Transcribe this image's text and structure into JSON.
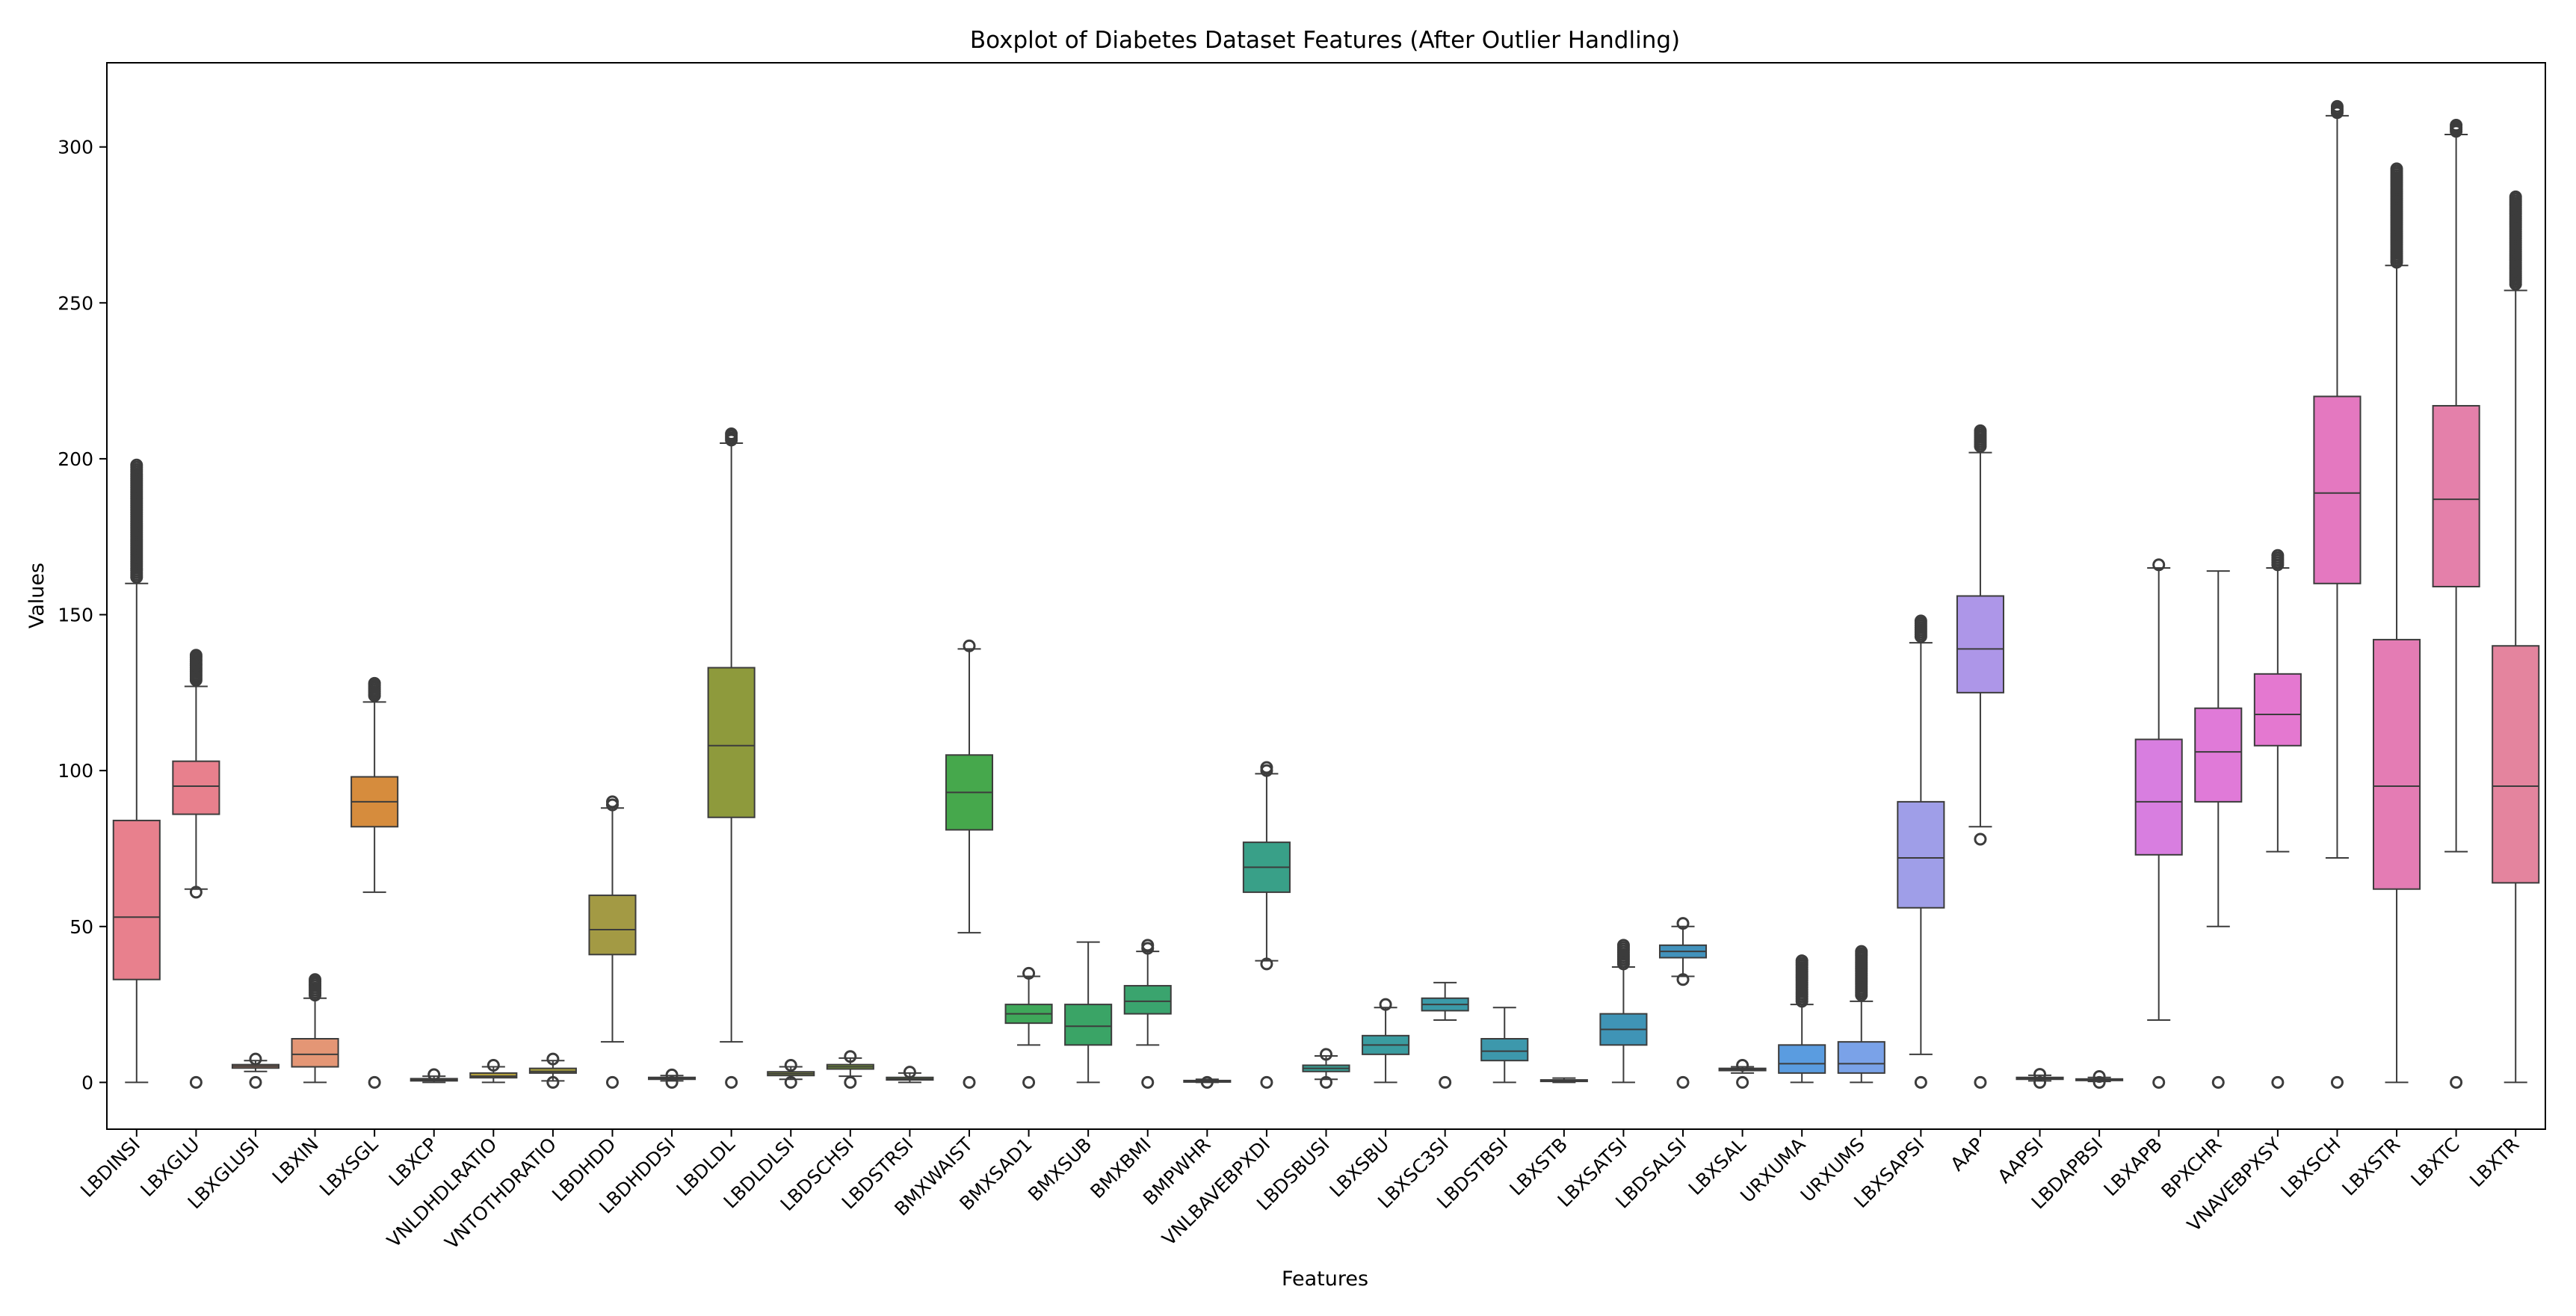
{
  "chart_data": {
    "type": "boxplot",
    "title": "Boxplot of Diabetes Dataset Features (After Outlier Handling)",
    "xlabel": "Features",
    "ylabel": "Values",
    "ylim": [
      -15,
      327
    ],
    "yticks": [
      0,
      50,
      100,
      150,
      200,
      250,
      300
    ],
    "grid": false,
    "series": [
      {
        "name": "LBDINSI",
        "color": "#e8808d",
        "q1": 33,
        "median": 53,
        "q3": 84,
        "whisker_low": 0,
        "whisker_high": 160,
        "outliers": [
          162,
          170,
          180,
          190,
          198
        ]
      },
      {
        "name": "LBXGLU",
        "color": "#e8808d",
        "q1": 86,
        "median": 95,
        "q3": 103,
        "whisker_low": 62,
        "whisker_high": 127,
        "outliers": [
          0,
          61,
          129,
          133,
          137
        ]
      },
      {
        "name": "LBXGLUSI",
        "color": "#e49675",
        "q1": 4.6,
        "median": 5.2,
        "q3": 5.7,
        "whisker_low": 3.5,
        "whisker_high": 7,
        "outliers": [
          0,
          7.5
        ]
      },
      {
        "name": "LBXIN",
        "color": "#e49675",
        "q1": 5,
        "median": 9,
        "q3": 14,
        "whisker_low": 0,
        "whisker_high": 27,
        "outliers": [
          28,
          31,
          33
        ]
      },
      {
        "name": "LBXSGL",
        "color": "#d68c3d",
        "q1": 82,
        "median": 90,
        "q3": 98,
        "whisker_low": 61,
        "whisker_high": 122,
        "outliers": [
          0,
          124,
          128
        ]
      },
      {
        "name": "LBXCP",
        "color": "#c09a3a",
        "q1": 0.5,
        "median": 0.8,
        "q3": 1.2,
        "whisker_low": 0,
        "whisker_high": 2,
        "outliers": [
          2.5
        ]
      },
      {
        "name": "VNLDHDLRATIO",
        "color": "#b3a03c",
        "q1": 1.5,
        "median": 2,
        "q3": 3,
        "whisker_low": 0,
        "whisker_high": 5,
        "outliers": [
          5.5
        ]
      },
      {
        "name": "VNTOTHDRATIO",
        "color": "#a9a03c",
        "q1": 3,
        "median": 3.5,
        "q3": 4.5,
        "whisker_low": 0.5,
        "whisker_high": 7,
        "outliers": [
          0,
          7.5
        ]
      },
      {
        "name": "LBDHDD",
        "color": "#a39a44",
        "q1": 41,
        "median": 49,
        "q3": 60,
        "whisker_low": 13,
        "whisker_high": 88,
        "outliers": [
          0,
          89,
          90
        ]
      },
      {
        "name": "LBDHDDSI",
        "color": "#9a9a3c",
        "q1": 1.0,
        "median": 1.3,
        "q3": 1.6,
        "whisker_low": 0.5,
        "whisker_high": 2.2,
        "outliers": [
          0,
          2.4
        ]
      },
      {
        "name": "LBDLDL",
        "color": "#8e9a3c",
        "q1": 85,
        "median": 108,
        "q3": 133,
        "whisker_low": 13,
        "whisker_high": 205,
        "outliers": [
          0,
          206,
          208
        ]
      },
      {
        "name": "LBDLDLSI",
        "color": "#8e9a3c",
        "q1": 2.2,
        "median": 2.8,
        "q3": 3.4,
        "whisker_low": 1,
        "whisker_high": 5,
        "outliers": [
          0,
          5.5
        ]
      },
      {
        "name": "LBDSCHSI",
        "color": "#7fa23c",
        "q1": 4.3,
        "median": 5,
        "q3": 5.7,
        "whisker_low": 2,
        "whisker_high": 7.8,
        "outliers": [
          0,
          8.3
        ]
      },
      {
        "name": "LBDSTRSI",
        "color": "#6aa63c",
        "q1": 0.8,
        "median": 1.1,
        "q3": 1.6,
        "whisker_low": 0,
        "whisker_high": 3,
        "outliers": [
          3.3
        ]
      },
      {
        "name": "BMXWAIST",
        "color": "#46a84c",
        "q1": 81,
        "median": 93,
        "q3": 105,
        "whisker_low": 48,
        "whisker_high": 139,
        "outliers": [
          0,
          140
        ]
      },
      {
        "name": "BMXSAD1",
        "color": "#3fa85a",
        "q1": 19,
        "median": 22,
        "q3": 25,
        "whisker_low": 12,
        "whisker_high": 34,
        "outliers": [
          0,
          35
        ]
      },
      {
        "name": "BMXSUB",
        "color": "#3aa466",
        "q1": 12,
        "median": 18,
        "q3": 25,
        "whisker_low": 0,
        "whisker_high": 45,
        "outliers": []
      },
      {
        "name": "BMXBMI",
        "color": "#3aa46e",
        "q1": 22,
        "median": 26,
        "q3": 31,
        "whisker_low": 12,
        "whisker_high": 42,
        "outliers": [
          0,
          43,
          44
        ]
      },
      {
        "name": "BMPWHR",
        "color": "#39a47a",
        "q1": 0.4,
        "median": 0.5,
        "q3": 0.6,
        "whisker_low": 0,
        "whisker_high": 1,
        "outliers": [
          0
        ]
      },
      {
        "name": "VNLBAVEBPXDI",
        "color": "#39a088",
        "q1": 61,
        "median": 69,
        "q3": 77,
        "whisker_low": 39,
        "whisker_high": 99,
        "outliers": [
          0,
          38,
          100,
          101
        ]
      },
      {
        "name": "LBDSBUSI",
        "color": "#399e94",
        "q1": 3.5,
        "median": 4.5,
        "q3": 5.5,
        "whisker_low": 1,
        "whisker_high": 8.5,
        "outliers": [
          0,
          9
        ]
      },
      {
        "name": "LBXSBU",
        "color": "#3a9ca0",
        "q1": 9,
        "median": 12,
        "q3": 15,
        "whisker_low": 0,
        "whisker_high": 24,
        "outliers": [
          25
        ]
      },
      {
        "name": "LBXSC3SI",
        "color": "#3b9aa8",
        "q1": 23,
        "median": 25,
        "q3": 27,
        "whisker_low": 20,
        "whisker_high": 32,
        "outliers": [
          0
        ]
      },
      {
        "name": "LBDSTBSI",
        "color": "#3d98ac",
        "q1": 7,
        "median": 10,
        "q3": 14,
        "whisker_low": 0,
        "whisker_high": 24,
        "outliers": []
      },
      {
        "name": "LBXSTB",
        "color": "#3e96b0",
        "q1": 0.4,
        "median": 0.6,
        "q3": 0.8,
        "whisker_low": 0,
        "whisker_high": 1.4,
        "outliers": []
      },
      {
        "name": "LBXSATSI",
        "color": "#3f94b6",
        "q1": 12,
        "median": 17,
        "q3": 22,
        "whisker_low": 0,
        "whisker_high": 37,
        "outliers": [
          38,
          41,
          44
        ]
      },
      {
        "name": "LBDSALSI",
        "color": "#4292bc",
        "q1": 40,
        "median": 42,
        "q3": 44,
        "whisker_low": 34,
        "whisker_high": 50,
        "outliers": [
          0,
          33,
          51
        ]
      },
      {
        "name": "LBXSAL",
        "color": "#4690c2",
        "q1": 3.8,
        "median": 4.2,
        "q3": 4.5,
        "whisker_low": 3,
        "whisker_high": 5,
        "outliers": [
          0,
          5.5
        ]
      },
      {
        "name": "URXUMA",
        "color": "#5a9ce0",
        "q1": 3,
        "median": 6,
        "q3": 12,
        "whisker_low": 0,
        "whisker_high": 25,
        "outliers": [
          26,
          32,
          39
        ]
      },
      {
        "name": "URXUMS",
        "color": "#7aa2e8",
        "q1": 3,
        "median": 6,
        "q3": 13,
        "whisker_low": 0,
        "whisker_high": 26,
        "outliers": [
          28,
          35,
          42
        ]
      },
      {
        "name": "LBXSAPSI",
        "color": "#9f9ee8",
        "q1": 56,
        "median": 72,
        "q3": 90,
        "whisker_low": 9,
        "whisker_high": 141,
        "outliers": [
          0,
          143,
          148
        ]
      },
      {
        "name": "AAP",
        "color": "#ad96e8",
        "q1": 125,
        "median": 139,
        "q3": 156,
        "whisker_low": 82,
        "whisker_high": 202,
        "outliers": [
          0,
          78,
          204,
          209
        ]
      },
      {
        "name": "AAPSI",
        "color": "#b890e8",
        "q1": 1.0,
        "median": 1.3,
        "q3": 1.6,
        "whisker_low": 0.5,
        "whisker_high": 2.3,
        "outliers": [
          0,
          2.6
        ]
      },
      {
        "name": "LBDAPBSI",
        "color": "#c88ae6",
        "q1": 0.7,
        "median": 0.9,
        "q3": 1.1,
        "whisker_low": 0.3,
        "whisker_high": 1.6,
        "outliers": [
          0,
          1.9
        ]
      },
      {
        "name": "LBXAPB",
        "color": "#d87ee0",
        "q1": 73,
        "median": 90,
        "q3": 110,
        "whisker_low": 20,
        "whisker_high": 165,
        "outliers": [
          0,
          166
        ]
      },
      {
        "name": "BPXCHR",
        "color": "#e07ad8",
        "q1": 90,
        "median": 106,
        "q3": 120,
        "whisker_low": 50,
        "whisker_high": 164,
        "outliers": [
          0
        ]
      },
      {
        "name": "VNAVEBPXSY",
        "color": "#e478d0",
        "q1": 108,
        "median": 118,
        "q3": 131,
        "whisker_low": 74,
        "whisker_high": 165,
        "outliers": [
          0,
          166,
          169
        ]
      },
      {
        "name": "LBXSCH",
        "color": "#e478c0",
        "q1": 160,
        "median": 189,
        "q3": 220,
        "whisker_low": 72,
        "whisker_high": 310,
        "outliers": [
          0,
          311,
          313
        ]
      },
      {
        "name": "LBXSTR",
        "color": "#e47cb4",
        "q1": 62,
        "median": 95,
        "q3": 142,
        "whisker_low": 0,
        "whisker_high": 262,
        "outliers": [
          263,
          275,
          285,
          293
        ]
      },
      {
        "name": "LBXTC",
        "color": "#e480aa",
        "q1": 159,
        "median": 187,
        "q3": 217,
        "whisker_low": 74,
        "whisker_high": 304,
        "outliers": [
          0,
          305,
          307
        ]
      },
      {
        "name": "LBXTR",
        "color": "#e4849e",
        "q1": 64,
        "median": 95,
        "q3": 140,
        "whisker_low": 0,
        "whisker_high": 254,
        "outliers": [
          256,
          265,
          275,
          284
        ]
      }
    ]
  }
}
